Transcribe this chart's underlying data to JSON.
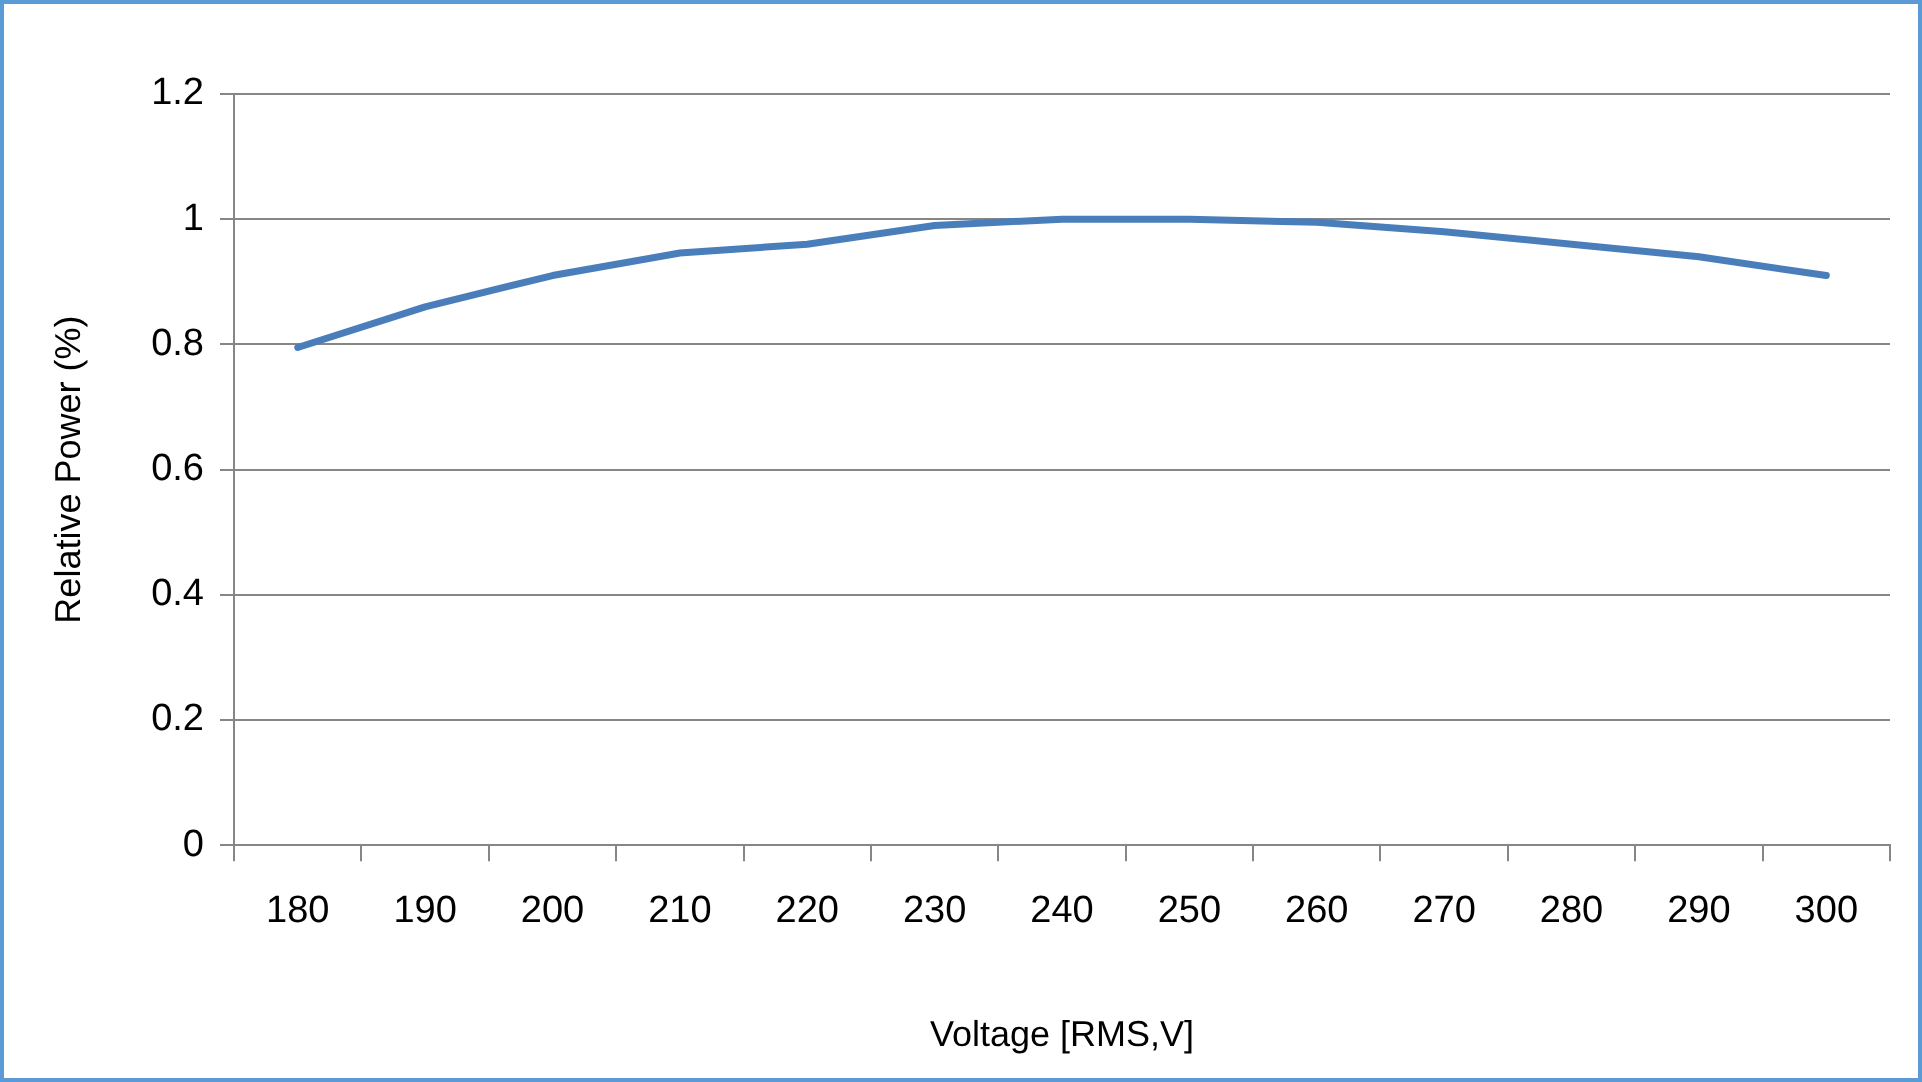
{
  "chart_data": {
    "type": "line",
    "xlabel": "Voltage [RMS,V]",
    "ylabel": "Relative Power (%)",
    "categories": [
      "180",
      "190",
      "200",
      "210",
      "220",
      "230",
      "240",
      "250",
      "260",
      "270",
      "280",
      "290",
      "300"
    ],
    "series": [
      {
        "color": "#4a7ebb",
        "values": [
          0.795,
          0.86,
          0.91,
          0.946,
          0.96,
          0.99,
          1.0,
          1.0,
          0.995,
          0.98,
          0.96,
          0.94,
          0.91
        ]
      }
    ],
    "ylim": [
      0,
      1.2
    ],
    "yticks": [
      0,
      0.2,
      0.4,
      0.6,
      0.8,
      1,
      1.2
    ],
    "grid": "y",
    "legend": false,
    "marker": "none",
    "line_style": "solid"
  }
}
